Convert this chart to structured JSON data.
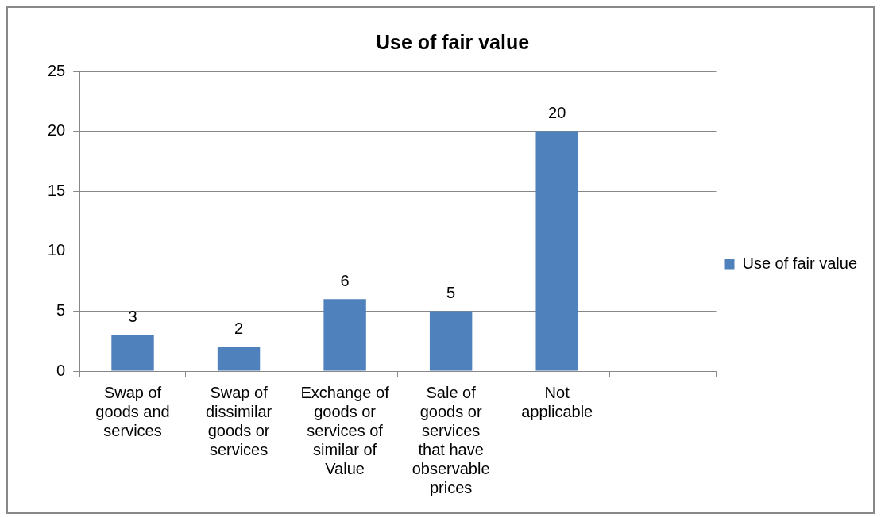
{
  "chart_data": {
    "type": "bar",
    "title": "Use of fair value",
    "categories": [
      "Swap of goods and services",
      "Swap of dissimilar goods or services",
      "Exchange of goods or services of similar of Value",
      "Sale of goods or services that have observable prices",
      "Not applicable",
      null
    ],
    "series": [
      {
        "name": "Use of fair value",
        "color": "#4f81bd",
        "values": [
          3,
          2,
          6,
          5,
          20,
          null
        ]
      }
    ],
    "ylim": [
      0,
      25
    ],
    "yticks": [
      0,
      5,
      10,
      15,
      20,
      25
    ],
    "grid": "y",
    "legend": "right",
    "data_labels": true
  }
}
